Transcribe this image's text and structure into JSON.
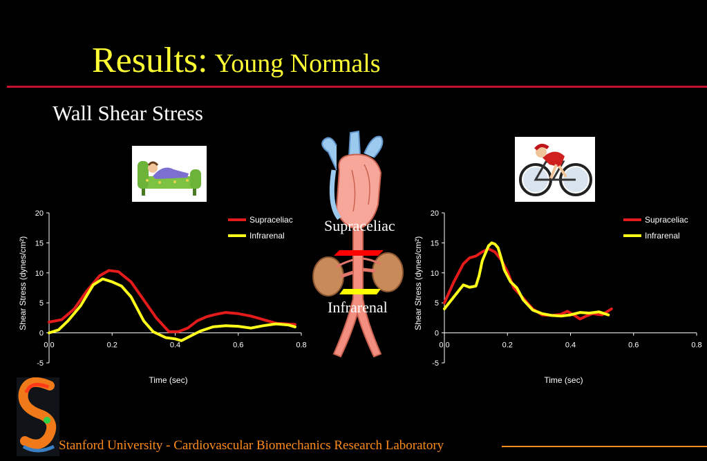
{
  "title": {
    "main": "Results:",
    "sub": "Young Normals"
  },
  "subtitle": "Wall Shear Stress",
  "labels": {
    "upper": "Supraceliac",
    "lower": "Infrarenal"
  },
  "footer": "Stanford University - Cardiovascular Biomechanics Research Laboratory",
  "colors": {
    "supraceliac": "#e31b1b",
    "infrarenal": "#ffff1a",
    "title": "#ffff33",
    "rule": "#c8102e",
    "footer": "#ff8c1a"
  },
  "chart_data": [
    {
      "type": "line",
      "condition": "rest",
      "xlabel": "Time (sec)",
      "ylabel": "Shear Stress (dynes/cm²)",
      "xlim": [
        0,
        0.8
      ],
      "ylim": [
        -5,
        20
      ],
      "xticks": [
        "0.0",
        "0.2",
        "0.4",
        "0.6",
        "0.8"
      ],
      "yticks": [
        "-5",
        "0",
        "5",
        "10",
        "15",
        "20"
      ],
      "legend_position": "top-right",
      "series": [
        {
          "name": "Supraceliac",
          "color": "#e31b1b",
          "x": [
            0,
            0.04,
            0.08,
            0.12,
            0.16,
            0.19,
            0.22,
            0.26,
            0.3,
            0.34,
            0.38,
            0.41,
            0.44,
            0.47,
            0.5,
            0.53,
            0.56,
            0.6,
            0.64,
            0.68,
            0.72,
            0.78
          ],
          "y": [
            1.8,
            2.2,
            4,
            7,
            9.5,
            10.4,
            10.2,
            8.5,
            5.5,
            2.5,
            0.2,
            0.2,
            0.8,
            2,
            2.7,
            3.1,
            3.4,
            3.2,
            2.8,
            2.2,
            1.6,
            1.4
          ]
        },
        {
          "name": "Infrarenal",
          "color": "#ffff1a",
          "x": [
            0,
            0.03,
            0.06,
            0.1,
            0.14,
            0.17,
            0.2,
            0.23,
            0.26,
            0.3,
            0.33,
            0.37,
            0.4,
            0.42,
            0.45,
            0.48,
            0.52,
            0.56,
            0.6,
            0.64,
            0.68,
            0.72,
            0.76,
            0.78
          ],
          "y": [
            0,
            0.5,
            2,
            4.5,
            8,
            9,
            8.5,
            7.8,
            6,
            2,
            0.2,
            -0.8,
            -1,
            -1.3,
            -0.5,
            0.3,
            1,
            1.2,
            1.1,
            0.8,
            1.2,
            1.5,
            1.3,
            1
          ]
        }
      ]
    },
    {
      "type": "line",
      "condition": "exercise",
      "xlabel": "Time (sec)",
      "ylabel": "Shear Stress (dynes/cm²)",
      "xlim": [
        0,
        0.8
      ],
      "ylim": [
        -5,
        20
      ],
      "xticks": [
        "0.0",
        "0.2",
        "0.4",
        "0.6",
        "0.8"
      ],
      "yticks": [
        "-5",
        "0",
        "5",
        "10",
        "15",
        "20"
      ],
      "legend_position": "top-right",
      "series": [
        {
          "name": "Supraceliac",
          "color": "#e31b1b",
          "x": [
            0,
            0.03,
            0.06,
            0.08,
            0.1,
            0.12,
            0.14,
            0.16,
            0.18,
            0.2,
            0.22,
            0.25,
            0.28,
            0.31,
            0.34,
            0.37,
            0.39,
            0.41,
            0.43,
            0.45,
            0.47,
            0.5,
            0.53
          ],
          "y": [
            5,
            8.5,
            11.5,
            12.5,
            12.8,
            13.5,
            14,
            13.5,
            12.2,
            10.2,
            7.5,
            5.8,
            4,
            3,
            2.9,
            3.1,
            3.6,
            3,
            2.3,
            2.8,
            3.2,
            3,
            4
          ]
        },
        {
          "name": "Infrarenal",
          "color": "#ffff1a",
          "x": [
            0,
            0.03,
            0.06,
            0.08,
            0.1,
            0.11,
            0.12,
            0.14,
            0.15,
            0.16,
            0.17,
            0.18,
            0.19,
            0.21,
            0.23,
            0.25,
            0.28,
            0.31,
            0.34,
            0.37,
            0.4,
            0.43,
            0.46,
            0.49,
            0.52
          ],
          "y": [
            4,
            6,
            8,
            7.6,
            7.8,
            9.5,
            12,
            14.5,
            15,
            14.8,
            14.2,
            12.5,
            10.5,
            8.5,
            7.5,
            5.5,
            3.8,
            3.2,
            2.9,
            2.8,
            3,
            3.4,
            3.3,
            3.5,
            3
          ]
        }
      ]
    }
  ]
}
